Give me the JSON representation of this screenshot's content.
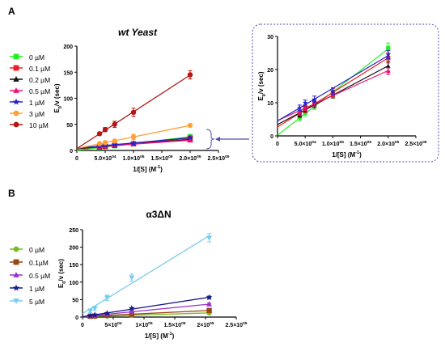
{
  "colors": {
    "green": "#22ee22",
    "red": "#ee1c24",
    "black": "#111111",
    "pink": "#ee1177",
    "blue": "#2222cc",
    "orange": "#ffa033",
    "darkred": "#b81414",
    "olive": "#77bb22",
    "brown": "#994411",
    "purple": "#9933cc",
    "navy": "#1a1a88",
    "lightblue": "#77ccee",
    "arrow": "#4b4bb4",
    "inset_border": "#4b4bb4"
  },
  "chart_data": [
    {
      "id": "A",
      "panel_label": "A",
      "type": "line",
      "title": "wt Yeast",
      "xlabel": "1/[S] (M",
      "xlabel_sup": "-1",
      "xlabel_tail": ")",
      "ylabel": "E",
      "ylabel_sub": "0",
      "ylabel_tail": "/v (sec)",
      "xlim": [
        0,
        250000
      ],
      "ylim": [
        0,
        200
      ],
      "x_ticks": [
        {
          "v": 0,
          "label": "0"
        },
        {
          "v": 50000,
          "label": "5.0×10",
          "sup": "04"
        },
        {
          "v": 100000,
          "label": "1.0×10",
          "sup": "05"
        },
        {
          "v": 150000,
          "label": "1.5×10",
          "sup": "05"
        },
        {
          "v": 200000,
          "label": "2.0×10",
          "sup": "05"
        },
        {
          "v": 250000,
          "label": "2.5×10",
          "sup": "05"
        }
      ],
      "y_ticks": [
        0,
        50,
        100,
        150,
        200
      ],
      "series": [
        {
          "name": "0 µM",
          "color": "green",
          "marker": "square",
          "x": [
            40000,
            50000,
            66667,
            100000,
            200000
          ],
          "y": [
            5.5,
            7,
            9,
            12.5,
            26.5
          ],
          "err": [
            1,
            1,
            1,
            1.2,
            1.5
          ]
        },
        {
          "name": "0.1 µM",
          "color": "red",
          "marker": "square",
          "x": [
            40000,
            50000,
            66667,
            100000,
            200000
          ],
          "y": [
            6.5,
            8,
            10,
            13,
            23.5
          ],
          "err": [
            1,
            1,
            1,
            1.2,
            1.5
          ]
        },
        {
          "name": "0.2 µM",
          "color": "black",
          "marker": "triangle",
          "x": [
            40000,
            50000,
            66667,
            100000,
            200000
          ],
          "y": [
            6.5,
            8,
            9.5,
            12.5,
            21
          ],
          "err": [
            0.8,
            0.8,
            1,
            1,
            1.5
          ]
        },
        {
          "name": "0.5 µM",
          "color": "pink",
          "marker": "triangle",
          "x": [
            40000,
            50000,
            66667,
            100000,
            200000
          ],
          "y": [
            7,
            8.5,
            10,
            12.5,
            19.5
          ],
          "err": [
            0.8,
            0.8,
            1,
            1,
            1
          ]
        },
        {
          "name": "1 µM",
          "color": "blue",
          "marker": "star",
          "x": [
            40000,
            50000,
            66667,
            100000,
            200000
          ],
          "y": [
            8.5,
            10,
            11,
            13.5,
            24.5
          ],
          "err": [
            0.8,
            0.8,
            1,
            1,
            1.2
          ]
        },
        {
          "name": "3 µM",
          "color": "orange",
          "marker": "circle",
          "x": [
            40000,
            50000,
            66667,
            100000,
            200000
          ],
          "y": [
            13,
            15,
            18,
            26,
            48
          ],
          "err": [
            2,
            2,
            2,
            5,
            2
          ]
        },
        {
          "name": "10 µM",
          "color": "darkred",
          "marker": "circle",
          "x": [
            40000,
            50000,
            66667,
            100000,
            200000
          ],
          "y": [
            32,
            40,
            50,
            73,
            145
          ],
          "err": [
            3,
            4,
            6,
            8,
            8
          ]
        }
      ]
    },
    {
      "id": "A-inset",
      "type": "line",
      "xlabel": "1/[S] (M",
      "xlabel_sup": "-1",
      "xlabel_tail": ")",
      "ylabel": "E",
      "ylabel_sub": "0",
      "ylabel_tail": "/v (sec)",
      "xlim": [
        0,
        250000
      ],
      "ylim": [
        0,
        30
      ],
      "x_ticks": [
        {
          "v": 0,
          "label": "0"
        },
        {
          "v": 50000,
          "label": "5.0×10",
          "sup": "04"
        },
        {
          "v": 100000,
          "label": "1.0×10",
          "sup": "05"
        },
        {
          "v": 150000,
          "label": "1.5×10",
          "sup": "05"
        },
        {
          "v": 200000,
          "label": "2.0×10",
          "sup": "05"
        },
        {
          "v": 250000,
          "label": "2.5×10",
          "sup": "05"
        }
      ],
      "y_ticks": [
        0,
        10,
        20,
        30
      ],
      "series_from": "A",
      "series_names": [
        "0 µM",
        "0.1 µM",
        "0.2 µM",
        "0.5 µM",
        "1 µM"
      ]
    },
    {
      "id": "B",
      "panel_label": "B",
      "type": "line",
      "title": "α3ΔN",
      "xlabel": "1/[S] (M",
      "xlabel_sup": "-1",
      "xlabel_tail": ")",
      "ylabel": "E",
      "ylabel_sub": "0",
      "ylabel_tail": "/v (sec)",
      "xlim": [
        0,
        250000
      ],
      "ylim": [
        0,
        250
      ],
      "x_ticks": [
        {
          "v": 0,
          "label": "0"
        },
        {
          "v": 50000,
          "label": "5×10",
          "sup": "04"
        },
        {
          "v": 100000,
          "label": "1×10",
          "sup": "05"
        },
        {
          "v": 150000,
          "label": "1.5×10",
          "sup": "05"
        },
        {
          "v": 200000,
          "label": "2×10",
          "sup": "05"
        },
        {
          "v": 250000,
          "label": "2.5×10",
          "sup": "05"
        }
      ],
      "y_ticks": [
        0,
        50,
        100,
        150,
        200,
        250
      ],
      "series": [
        {
          "name": "0 µM",
          "color": "olive",
          "marker": "circle",
          "x": [
            12500,
            20000,
            40000,
            80000,
            206000
          ],
          "y": [
            1.5,
            2,
            3,
            5,
            12
          ],
          "err": [
            1,
            1,
            1,
            1.5,
            2
          ]
        },
        {
          "name": "0.1µM",
          "color": "brown",
          "marker": "square",
          "x": [
            12500,
            20000,
            40000,
            80000,
            206000
          ],
          "y": [
            2.5,
            3,
            5,
            8,
            19
          ],
          "err": [
            1,
            1,
            1,
            1.5,
            2
          ]
        },
        {
          "name": "0.5 µM",
          "color": "purple",
          "marker": "triangle",
          "x": [
            12500,
            20000,
            40000,
            80000,
            206000
          ],
          "y": [
            3.5,
            5,
            8,
            15,
            37
          ],
          "err": [
            1,
            1,
            1.5,
            2,
            3
          ]
        },
        {
          "name": "1 µM",
          "color": "navy",
          "marker": "star",
          "x": [
            12500,
            20000,
            40000,
            80000,
            206000
          ],
          "y": [
            4,
            6,
            11,
            25,
            56
          ],
          "err": [
            1,
            1,
            2,
            2,
            4
          ]
        },
        {
          "name": "5 µM",
          "color": "lightblue",
          "marker": "triangle-down",
          "x": [
            12500,
            20000,
            40000,
            80000,
            206000
          ],
          "y": [
            18,
            25,
            55,
            113,
            227
          ],
          "err": [
            5,
            6,
            8,
            10,
            12
          ]
        }
      ]
    }
  ]
}
